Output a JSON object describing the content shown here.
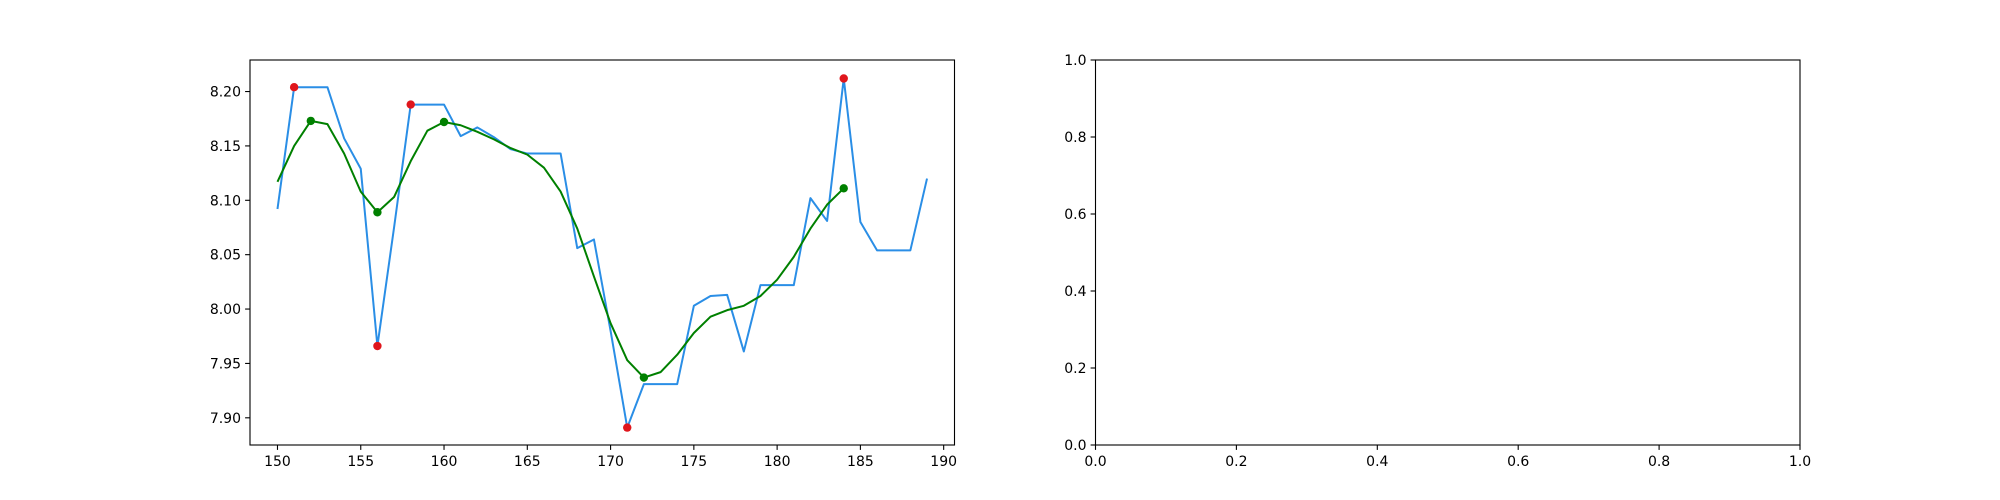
{
  "chart_data": [
    {
      "type": "line",
      "xlim": [
        148.35,
        190.65
      ],
      "ylim": [
        7.875,
        8.229
      ],
      "xticks": [
        150,
        155,
        160,
        165,
        170,
        175,
        180,
        185,
        190
      ],
      "yticks": [
        {
          "value": 7.9,
          "label": "7.90"
        },
        7.95,
        {
          "value": 8.0,
          "label": "8.00"
        },
        8.05,
        {
          "value": 8.1,
          "label": "8.10"
        },
        8.15,
        {
          "value": 8.2,
          "label": "8.20"
        }
      ],
      "series": [
        {
          "color": "#2a8ee6",
          "marker": false,
          "x": [
            150,
            151,
            152,
            153,
            154,
            155,
            156,
            157,
            158,
            159,
            160,
            161,
            162,
            163,
            164,
            165,
            166,
            167,
            168,
            169,
            170,
            171,
            172,
            173,
            174,
            175,
            176,
            177,
            178,
            179,
            180,
            181,
            182,
            183,
            184,
            185,
            186,
            187,
            188,
            189
          ],
          "values": [
            8.092,
            8.204,
            8.204,
            8.204,
            8.157,
            8.129,
            7.966,
            8.075,
            8.188,
            8.188,
            8.188,
            8.159,
            8.167,
            8.158,
            8.147,
            8.143,
            8.143,
            8.143,
            8.056,
            8.064,
            7.98,
            7.891,
            7.931,
            7.931,
            7.931,
            8.003,
            8.012,
            8.013,
            7.961,
            8.022,
            8.022,
            8.022,
            8.102,
            8.081,
            8.212,
            8.08,
            8.054,
            8.054,
            8.054,
            8.12
          ]
        },
        {
          "color": "#008000",
          "marker": false,
          "x": [
            150,
            151,
            152,
            153,
            154,
            155,
            156,
            157,
            158,
            159,
            160,
            161,
            162,
            163,
            164,
            165,
            166,
            167,
            168,
            169,
            170,
            171,
            172,
            173,
            174,
            175,
            176,
            177,
            178,
            179,
            180,
            181,
            182,
            183,
            184
          ],
          "values": [
            8.117,
            8.15,
            8.173,
            8.17,
            8.143,
            8.108,
            8.089,
            8.103,
            8.136,
            8.164,
            8.172,
            8.169,
            8.163,
            8.156,
            8.148,
            8.142,
            8.13,
            8.108,
            8.074,
            8.03,
            7.987,
            7.953,
            7.937,
            7.942,
            7.958,
            7.978,
            7.993,
            7.999,
            8.003,
            8.012,
            8.027,
            8.048,
            8.074,
            8.096,
            8.111
          ]
        },
        {
          "color": "#e0161c",
          "marker": true,
          "x": [
            151,
            156,
            158,
            171,
            184
          ],
          "values": [
            8.204,
            7.966,
            8.188,
            7.891,
            8.212
          ]
        },
        {
          "color": "#008000",
          "marker": true,
          "x": [
            152,
            156,
            160,
            172,
            184
          ],
          "values": [
            8.173,
            8.089,
            8.172,
            7.937,
            8.111
          ]
        }
      ]
    },
    {
      "type": "line",
      "xlim": [
        0,
        1
      ],
      "ylim": [
        0,
        1
      ],
      "xticks": [
        {
          "value": 0,
          "label": "0.0"
        },
        0.2,
        0.4,
        0.6,
        0.8,
        {
          "value": 1,
          "label": "1.0"
        }
      ],
      "yticks": [
        {
          "value": 0,
          "label": "0.0"
        },
        0.2,
        0.4,
        0.6,
        0.8,
        {
          "value": 1,
          "label": "1.0"
        }
      ],
      "series": []
    }
  ]
}
